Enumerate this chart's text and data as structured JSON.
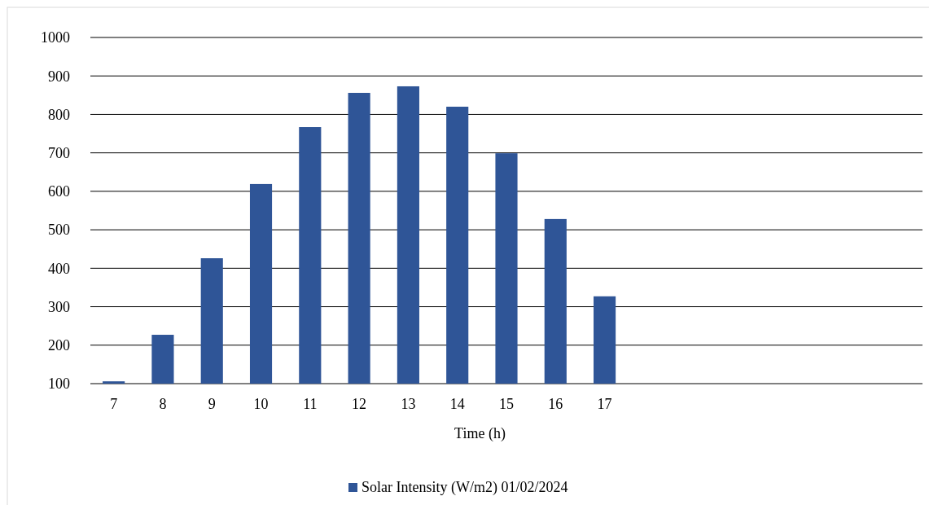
{
  "chart_data": {
    "type": "bar",
    "xlabel": "Time (h)",
    "categories": [
      "7",
      "8",
      "9",
      "10",
      "11",
      "12",
      "13",
      "14",
      "15",
      "16",
      "17",
      null,
      null,
      null,
      null,
      null,
      null
    ],
    "series": [
      {
        "name": "Solar Intensity (W/m2) 01/02/2024",
        "color": "#2f5597",
        "values": [
          106,
          227,
          426,
          619,
          767,
          856,
          873,
          820,
          699,
          528,
          327,
          null,
          null,
          null,
          null,
          null,
          null
        ]
      }
    ],
    "ylim": [
      100,
      1000
    ],
    "yticks": [
      100,
      200,
      300,
      400,
      500,
      600,
      700,
      800,
      900,
      1000
    ],
    "grid": "y",
    "legend": "bottom"
  }
}
